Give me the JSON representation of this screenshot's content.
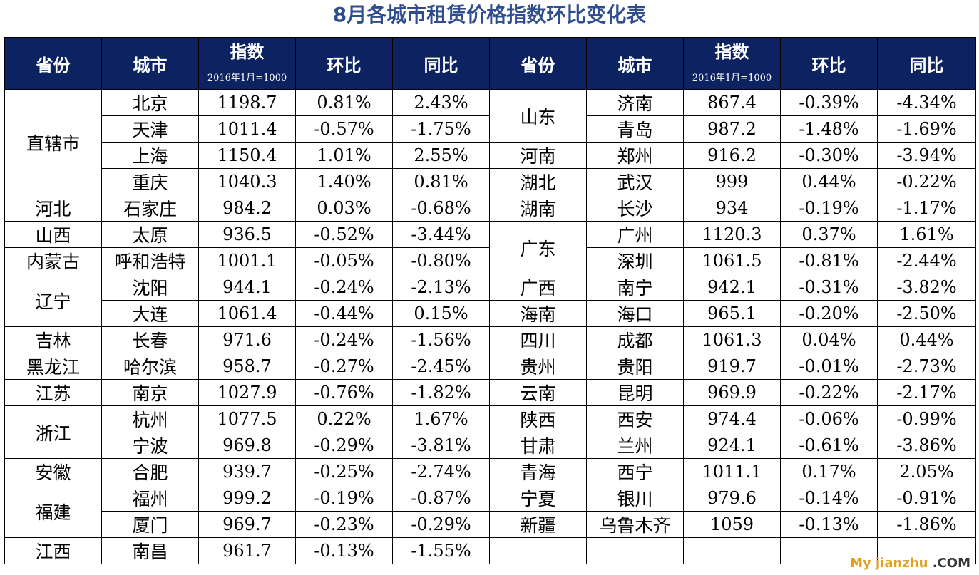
{
  "title": "8月各城市租赁价格指数环比变化表",
  "header": {
    "province": "省份",
    "city": "城市",
    "index": "指数",
    "index_sub": "2016年1月=1000",
    "mom": "环比",
    "yoy": "同比"
  },
  "left_groups": [
    {
      "province": "直辖市",
      "rows": [
        {
          "city": "北京",
          "index": "1198.7",
          "mom": "0.81%",
          "yoy": "2.43%"
        },
        {
          "city": "天津",
          "index": "1011.4",
          "mom": "-0.57%",
          "yoy": "-1.75%"
        },
        {
          "city": "上海",
          "index": "1150.4",
          "mom": "1.01%",
          "yoy": "2.55%"
        },
        {
          "city": "重庆",
          "index": "1040.3",
          "mom": "1.40%",
          "yoy": "0.81%"
        }
      ]
    },
    {
      "province": "河北",
      "rows": [
        {
          "city": "石家庄",
          "index": "984.2",
          "mom": "0.03%",
          "yoy": "-0.68%"
        }
      ]
    },
    {
      "province": "山西",
      "rows": [
        {
          "city": "太原",
          "index": "936.5",
          "mom": "-0.52%",
          "yoy": "-3.44%"
        }
      ]
    },
    {
      "province": "内蒙古",
      "rows": [
        {
          "city": "呼和浩特",
          "index": "1001.1",
          "mom": "-0.05%",
          "yoy": "-0.80%"
        }
      ]
    },
    {
      "province": "辽宁",
      "rows": [
        {
          "city": "沈阳",
          "index": "944.1",
          "mom": "-0.24%",
          "yoy": "-2.13%"
        },
        {
          "city": "大连",
          "index": "1061.4",
          "mom": "-0.44%",
          "yoy": "0.15%"
        }
      ]
    },
    {
      "province": "吉林",
      "rows": [
        {
          "city": "长春",
          "index": "971.6",
          "mom": "-0.24%",
          "yoy": "-1.56%"
        }
      ]
    },
    {
      "province": "黑龙江",
      "rows": [
        {
          "city": "哈尔滨",
          "index": "958.7",
          "mom": "-0.27%",
          "yoy": "-2.45%"
        }
      ]
    },
    {
      "province": "江苏",
      "rows": [
        {
          "city": "南京",
          "index": "1027.9",
          "mom": "-0.76%",
          "yoy": "-1.82%"
        }
      ]
    },
    {
      "province": "浙江",
      "rows": [
        {
          "city": "杭州",
          "index": "1077.5",
          "mom": "0.22%",
          "yoy": "1.67%"
        },
        {
          "city": "宁波",
          "index": "969.8",
          "mom": "-0.29%",
          "yoy": "-3.81%"
        }
      ]
    },
    {
      "province": "安徽",
      "rows": [
        {
          "city": "合肥",
          "index": "939.7",
          "mom": "-0.25%",
          "yoy": "-2.74%"
        }
      ]
    },
    {
      "province": "福建",
      "rows": [
        {
          "city": "福州",
          "index": "999.2",
          "mom": "-0.19%",
          "yoy": "-0.87%"
        },
        {
          "city": "厦门",
          "index": "969.7",
          "mom": "-0.23%",
          "yoy": "-0.29%"
        }
      ]
    },
    {
      "province": "江西",
      "rows": [
        {
          "city": "南昌",
          "index": "961.7",
          "mom": "-0.13%",
          "yoy": "-1.55%"
        }
      ]
    }
  ],
  "right_groups": [
    {
      "province": "山东",
      "rows": [
        {
          "city": "济南",
          "index": "867.4",
          "mom": "-0.39%",
          "yoy": "-4.34%"
        },
        {
          "city": "青岛",
          "index": "987.2",
          "mom": "-1.48%",
          "yoy": "-1.69%"
        }
      ]
    },
    {
      "province": "河南",
      "rows": [
        {
          "city": "郑州",
          "index": "916.2",
          "mom": "-0.30%",
          "yoy": "-3.94%"
        }
      ]
    },
    {
      "province": "湖北",
      "rows": [
        {
          "city": "武汉",
          "index": "999",
          "mom": "0.44%",
          "yoy": "-0.22%"
        }
      ]
    },
    {
      "province": "湖南",
      "rows": [
        {
          "city": "长沙",
          "index": "934",
          "mom": "-0.19%",
          "yoy": "-1.17%"
        }
      ]
    },
    {
      "province": "广东",
      "rows": [
        {
          "city": "广州",
          "index": "1120.3",
          "mom": "0.37%",
          "yoy": "1.61%"
        },
        {
          "city": "深圳",
          "index": "1061.5",
          "mom": "-0.81%",
          "yoy": "-2.44%"
        }
      ]
    },
    {
      "province": "广西",
      "rows": [
        {
          "city": "南宁",
          "index": "942.1",
          "mom": "-0.31%",
          "yoy": "-3.82%"
        }
      ]
    },
    {
      "province": "海南",
      "rows": [
        {
          "city": "海口",
          "index": "965.1",
          "mom": "-0.20%",
          "yoy": "-2.50%"
        }
      ]
    },
    {
      "province": "四川",
      "rows": [
        {
          "city": "成都",
          "index": "1061.3",
          "mom": "0.04%",
          "yoy": "0.44%"
        }
      ]
    },
    {
      "province": "贵州",
      "rows": [
        {
          "city": "贵阳",
          "index": "919.7",
          "mom": "-0.01%",
          "yoy": "-2.73%"
        }
      ]
    },
    {
      "province": "云南",
      "rows": [
        {
          "city": "昆明",
          "index": "969.9",
          "mom": "-0.22%",
          "yoy": "-2.17%"
        }
      ]
    },
    {
      "province": "陕西",
      "rows": [
        {
          "city": "西安",
          "index": "974.4",
          "mom": "-0.06%",
          "yoy": "-0.99%"
        }
      ]
    },
    {
      "province": "甘肃",
      "rows": [
        {
          "city": "兰州",
          "index": "924.1",
          "mom": "-0.61%",
          "yoy": "-3.86%"
        }
      ]
    },
    {
      "province": "青海",
      "rows": [
        {
          "city": "西宁",
          "index": "1011.1",
          "mom": "0.17%",
          "yoy": "2.05%"
        }
      ]
    },
    {
      "province": "宁夏",
      "rows": [
        {
          "city": "银川",
          "index": "979.6",
          "mom": "-0.14%",
          "yoy": "-0.91%"
        }
      ]
    },
    {
      "province": "新疆",
      "rows": [
        {
          "city": "乌鲁木齐",
          "index": "1059",
          "mom": "-0.13%",
          "yoy": "-1.86%"
        }
      ]
    }
  ],
  "watermark": {
    "text": "My jianzhu",
    "suffix": " .COM"
  }
}
